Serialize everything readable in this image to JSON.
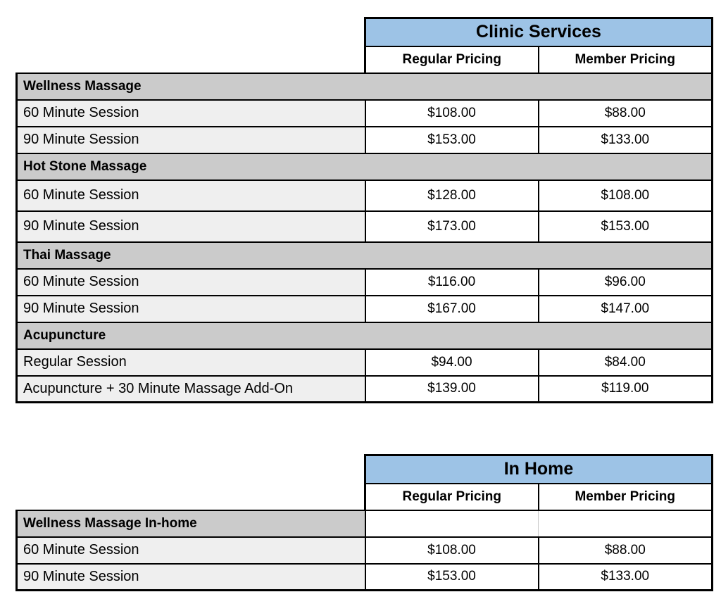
{
  "colors": {
    "header_blue": "#9DC3E6",
    "section_gray": "#CBCBCB",
    "row_gray": "#EFEFEF",
    "border": "#000000"
  },
  "tables": [
    {
      "id": "clinic",
      "title": "Clinic Services",
      "column_headers": [
        "Regular Pricing",
        "Member Pricing"
      ],
      "rows": [
        {
          "type": "section",
          "label": "Wellness Massage"
        },
        {
          "type": "item",
          "label": "60 Minute Session",
          "regular": "$108.00",
          "member": "$88.00"
        },
        {
          "type": "item",
          "label": "90 Minute Session",
          "regular": "$153.00",
          "member": "$133.00"
        },
        {
          "type": "section",
          "label": "Hot Stone Massage"
        },
        {
          "type": "item",
          "label": "60 Minute Session",
          "regular": "$128.00",
          "member": "$108.00"
        },
        {
          "type": "item",
          "label": "90 Minute Session",
          "regular": "$173.00",
          "member": "$153.00"
        },
        {
          "type": "section",
          "label": "Thai Massage"
        },
        {
          "type": "item",
          "label": "60 Minute Session",
          "regular": "$116.00",
          "member": "$96.00"
        },
        {
          "type": "item",
          "label": "90 Minute Session",
          "regular": "$167.00",
          "member": "$147.00"
        },
        {
          "type": "section",
          "label": "Acupuncture"
        },
        {
          "type": "item",
          "label": "Regular Session",
          "regular": "$94.00",
          "member": "$84.00"
        },
        {
          "type": "item",
          "label": "Acupuncture + 30 Minute Massage Add-On",
          "regular": "$139.00",
          "member": "$119.00"
        }
      ]
    },
    {
      "id": "inhome",
      "title": "In Home",
      "column_headers": [
        "Regular Pricing",
        "Member Pricing"
      ],
      "rows": [
        {
          "type": "section_open",
          "label": "Wellness Massage In-home",
          "regular": "",
          "member": ""
        },
        {
          "type": "item",
          "label": "60 Minute Session",
          "regular": "$108.00",
          "member": "$88.00"
        },
        {
          "type": "item",
          "label": "90 Minute Session",
          "regular": "$153.00",
          "member": "$133.00"
        }
      ]
    }
  ]
}
